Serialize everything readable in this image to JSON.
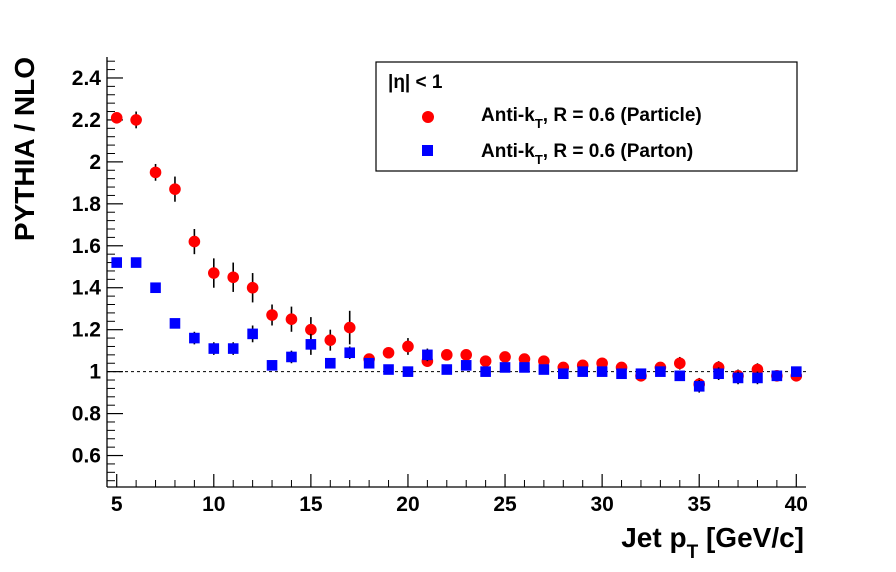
{
  "chart_data": {
    "type": "scatter",
    "xlabel_main": "Jet p",
    "xlabel_sub": "T",
    "xlabel_unit": " [GeV/c]",
    "ylabel": "PYTHIA / NLO",
    "xlim": [
      4.5,
      40.5
    ],
    "ylim": [
      0.45,
      2.5
    ],
    "x_ticks": [
      5,
      10,
      15,
      20,
      25,
      30,
      35,
      40
    ],
    "y_ticks": [
      0.6,
      0.8,
      1,
      1.2,
      1.4,
      1.6,
      1.8,
      2,
      2.2,
      2.4
    ],
    "reference_line": 1,
    "legend": {
      "header": "|η| < 1",
      "position": "top-right"
    },
    "series": [
      {
        "name_main": "Anti-k",
        "name_sub": "T",
        "name_rest": ", R = 0.6 (Particle)",
        "marker": "circle",
        "color": "#ff0000",
        "x": [
          5,
          6,
          7,
          8,
          9,
          10,
          11,
          12,
          13,
          14,
          15,
          16,
          17,
          18,
          19,
          20,
          21,
          22,
          23,
          24,
          25,
          26,
          27,
          28,
          29,
          30,
          31,
          32,
          33,
          34,
          35,
          36,
          37,
          38,
          39,
          40
        ],
        "y": [
          2.21,
          2.2,
          1.95,
          1.87,
          1.62,
          1.47,
          1.45,
          1.4,
          1.27,
          1.25,
          1.2,
          1.15,
          1.21,
          1.06,
          1.09,
          1.12,
          1.05,
          1.08,
          1.08,
          1.05,
          1.07,
          1.06,
          1.05,
          1.02,
          1.03,
          1.04,
          1.02,
          0.98,
          1.02,
          1.04,
          0.94,
          1.02,
          0.98,
          1.01,
          0.98,
          0.98
        ],
        "err": [
          0.02,
          0.04,
          0.04,
          0.06,
          0.06,
          0.07,
          0.07,
          0.07,
          0.05,
          0.06,
          0.06,
          0.05,
          0.08,
          0.02,
          0.02,
          0.04,
          0.02,
          0.02,
          0.02,
          0.02,
          0.02,
          0.02,
          0.02,
          0.02,
          0.02,
          0.02,
          0.02,
          0.02,
          0.02,
          0.03,
          0.03,
          0.03,
          0.03,
          0.03,
          0.02,
          0.02
        ]
      },
      {
        "name_main": "Anti-k",
        "name_sub": "T",
        "name_rest": ", R = 0.6 (Parton)",
        "marker": "square",
        "color": "#0000ff",
        "x": [
          5,
          6,
          7,
          8,
          9,
          10,
          11,
          12,
          13,
          14,
          15,
          16,
          17,
          18,
          19,
          20,
          21,
          22,
          23,
          24,
          25,
          26,
          27,
          28,
          29,
          30,
          31,
          32,
          33,
          34,
          35,
          36,
          37,
          38,
          39,
          40
        ],
        "y": [
          1.52,
          1.52,
          1.4,
          1.23,
          1.16,
          1.11,
          1.11,
          1.18,
          1.03,
          1.07,
          1.13,
          1.04,
          1.09,
          1.04,
          1.01,
          1.0,
          1.08,
          1.01,
          1.03,
          1.0,
          1.02,
          1.02,
          1.01,
          0.99,
          1.0,
          1.0,
          0.99,
          0.99,
          1.0,
          0.98,
          0.93,
          0.99,
          0.97,
          0.97,
          0.98,
          1.0
        ],
        "err": [
          0.02,
          0.02,
          0.02,
          0.02,
          0.03,
          0.03,
          0.03,
          0.04,
          0.02,
          0.03,
          0.05,
          0.02,
          0.03,
          0.02,
          0.01,
          0.01,
          0.03,
          0.01,
          0.01,
          0.01,
          0.01,
          0.01,
          0.01,
          0.01,
          0.01,
          0.01,
          0.02,
          0.02,
          0.02,
          0.02,
          0.03,
          0.03,
          0.03,
          0.03,
          0.02,
          0.02
        ]
      }
    ]
  }
}
